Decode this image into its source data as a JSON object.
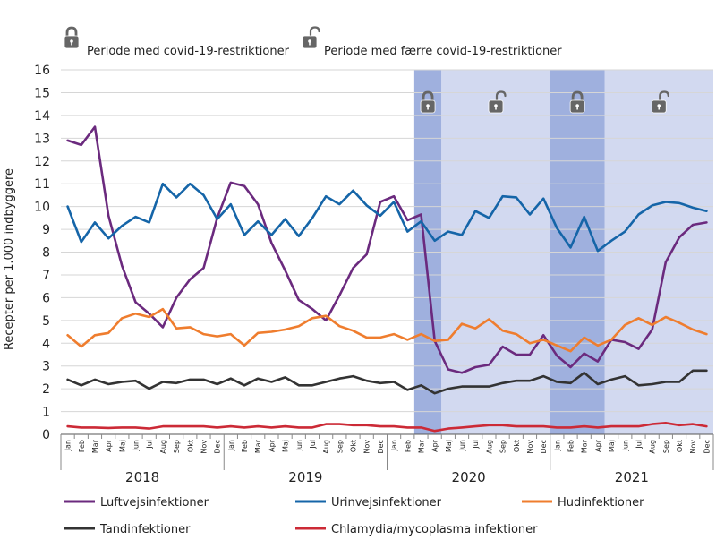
{
  "chart_data": {
    "type": "line",
    "ylabel": "Recepter per 1.000 indbyggere",
    "xlabel": "",
    "ylim": [
      0,
      16
    ],
    "yticks": [
      0,
      1,
      2,
      3,
      4,
      5,
      6,
      7,
      8,
      9,
      10,
      11,
      12,
      13,
      14,
      15,
      16
    ],
    "grid": true,
    "legend_position": "bottom",
    "x": [
      "Jan",
      "Feb",
      "Mar",
      "Apr",
      "Maj",
      "Jun",
      "Jul",
      "Aug",
      "Sep",
      "Okt",
      "Nov",
      "Dec",
      "Jan",
      "Feb",
      "Mar",
      "Apr",
      "Maj",
      "Jun",
      "Jul",
      "Aug",
      "Sep",
      "Okt",
      "Nov",
      "Dec",
      "Jan",
      "Feb",
      "Mar",
      "Apr",
      "Maj",
      "Jun",
      "Jul",
      "Aug",
      "Sep",
      "Okt",
      "Nov",
      "Dec",
      "Jan",
      "Feb",
      "Mar",
      "Apr",
      "Maj",
      "Jun",
      "Jul",
      "Aug",
      "Sep",
      "Okt",
      "Nov",
      "Dec"
    ],
    "years": [
      "2018",
      "2019",
      "2020",
      "2021"
    ],
    "periods_key": {
      "strict": "Periode med covid-19-restriktioner",
      "fewer": "Periode med færre covid-19-restriktioner"
    },
    "periods": [
      {
        "type": "strict",
        "start": 26,
        "end": 28
      },
      {
        "type": "fewer",
        "start": 28,
        "end": 36
      },
      {
        "type": "strict",
        "start": 36,
        "end": 40
      },
      {
        "type": "fewer",
        "start": 40,
        "end": 48
      }
    ],
    "series": [
      {
        "name": "Luftvejsinfektioner",
        "color": "#6b2a7e",
        "values": [
          12.9,
          12.7,
          13.5,
          9.6,
          7.4,
          5.8,
          5.3,
          4.7,
          6.0,
          6.8,
          7.3,
          9.5,
          11.05,
          10.9,
          10.1,
          8.4,
          7.2,
          5.9,
          5.5,
          5.0,
          6.1,
          7.3,
          7.9,
          10.2,
          10.45,
          9.4,
          9.65,
          4.1,
          2.85,
          2.7,
          2.95,
          3.05,
          3.85,
          3.5,
          3.5,
          4.35,
          3.45,
          2.95,
          3.55,
          3.2,
          4.15,
          4.05,
          3.75,
          4.6,
          7.55,
          8.65,
          9.2,
          9.3
        ]
      },
      {
        "name": "Urinvejsinfektioner",
        "color": "#1565a8",
        "values": [
          10.0,
          8.45,
          9.3,
          8.6,
          9.15,
          9.55,
          9.3,
          11.0,
          10.4,
          11.0,
          10.5,
          9.45,
          10.1,
          8.75,
          9.35,
          8.75,
          9.45,
          8.7,
          9.5,
          10.45,
          10.1,
          10.7,
          10.05,
          9.6,
          10.2,
          8.9,
          9.35,
          8.5,
          8.9,
          8.75,
          9.8,
          9.5,
          10.45,
          10.4,
          9.65,
          10.35,
          9.05,
          8.2,
          9.55,
          8.05,
          8.5,
          8.9,
          9.65,
          10.05,
          10.2,
          10.15,
          9.95,
          9.8
        ]
      },
      {
        "name": "Hudinfektioner",
        "color": "#ef7d2e",
        "values": [
          4.35,
          3.85,
          4.35,
          4.45,
          5.1,
          5.3,
          5.15,
          5.5,
          4.65,
          4.7,
          4.4,
          4.3,
          4.4,
          3.9,
          4.45,
          4.5,
          4.6,
          4.75,
          5.1,
          5.2,
          4.75,
          4.55,
          4.25,
          4.25,
          4.4,
          4.15,
          4.4,
          4.1,
          4.15,
          4.85,
          4.65,
          5.05,
          4.55,
          4.4,
          4.0,
          4.15,
          3.9,
          3.65,
          4.25,
          3.9,
          4.15,
          4.8,
          5.1,
          4.8,
          5.15,
          4.9,
          4.6,
          4.4
        ]
      },
      {
        "name": "Tandinfektioner",
        "color": "#333333",
        "values": [
          2.4,
          2.15,
          2.4,
          2.2,
          2.3,
          2.35,
          2.0,
          2.3,
          2.25,
          2.4,
          2.4,
          2.2,
          2.45,
          2.15,
          2.45,
          2.3,
          2.5,
          2.15,
          2.15,
          2.3,
          2.45,
          2.55,
          2.35,
          2.25,
          2.3,
          1.95,
          2.15,
          1.8,
          2.0,
          2.1,
          2.1,
          2.1,
          2.25,
          2.35,
          2.35,
          2.55,
          2.3,
          2.25,
          2.7,
          2.2,
          2.4,
          2.55,
          2.15,
          2.2,
          2.3,
          2.3,
          2.8,
          2.8
        ]
      },
      {
        "name": "Chlamydia/mycoplasma infektioner",
        "color": "#cc2a36",
        "values": [
          0.35,
          0.3,
          0.3,
          0.28,
          0.3,
          0.3,
          0.25,
          0.35,
          0.35,
          0.35,
          0.35,
          0.3,
          0.35,
          0.3,
          0.35,
          0.3,
          0.35,
          0.3,
          0.3,
          0.45,
          0.45,
          0.4,
          0.4,
          0.35,
          0.35,
          0.3,
          0.3,
          0.15,
          0.25,
          0.3,
          0.35,
          0.4,
          0.4,
          0.35,
          0.35,
          0.35,
          0.3,
          0.3,
          0.35,
          0.3,
          0.35,
          0.35,
          0.35,
          0.45,
          0.5,
          0.4,
          0.45,
          0.35
        ]
      }
    ]
  },
  "colors": {
    "strict_band": "#9fb0de",
    "fewer_band": "#d2d9f0",
    "lock": "#666666",
    "grid": "#d6d6d6"
  },
  "icons": {
    "strict": "locked-padlock-icon",
    "fewer": "unlocked-padlock-icon"
  }
}
